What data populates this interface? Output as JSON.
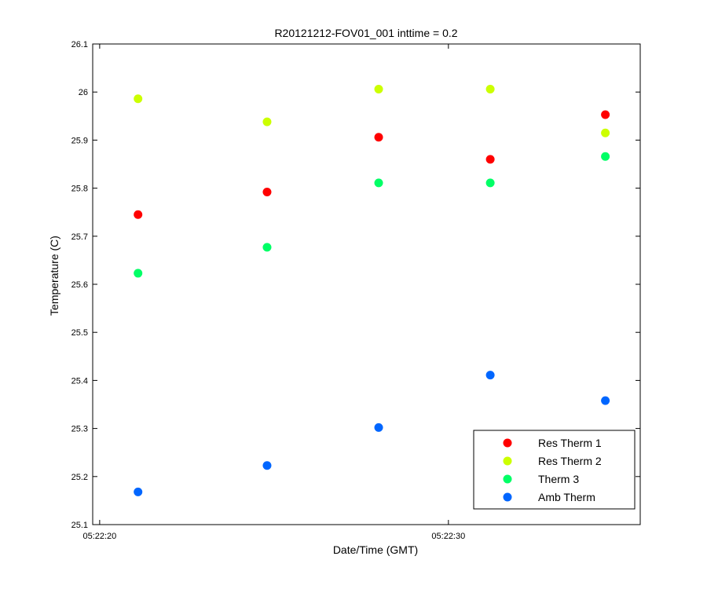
{
  "chart_data": {
    "type": "scatter",
    "title": "R20121212-FOV01_001 inttime = 0.2",
    "xlabel": "Date/Time (GMT)",
    "ylabel": "Temperature (C)",
    "xlim": [
      "05:22:19.8",
      "05:22:35.5"
    ],
    "ylim": [
      25.1,
      26.1
    ],
    "yticks": [
      25.1,
      25.2,
      25.3,
      25.4,
      25.5,
      25.6,
      25.7,
      25.8,
      25.9,
      26,
      26.1
    ],
    "yticklabels": [
      "25.1",
      "25.2",
      "25.3",
      "25.4",
      "25.5",
      "25.6",
      "25.7",
      "25.8",
      "25.9",
      "26",
      "26.1"
    ],
    "xticks": [
      "05:22:20",
      "05:22:30"
    ],
    "xticklabels": [
      "05:22:20",
      "05:22:30"
    ],
    "x": [
      "05:22:21.1",
      "05:22:24.8",
      "05:22:28.0",
      "05:22:31.2",
      "05:22:34.5"
    ],
    "series": [
      {
        "name": "Res Therm 1",
        "color": "#ff0000",
        "values": [
          25.745,
          25.792,
          25.906,
          25.86,
          25.953
        ]
      },
      {
        "name": "Res Therm 2",
        "color": "#ccff00",
        "values": [
          25.986,
          25.938,
          26.006,
          26.006,
          25.915
        ]
      },
      {
        "name": "Therm 3",
        "color": "#00ff66",
        "values": [
          25.623,
          25.677,
          25.811,
          25.811,
          25.866
        ]
      },
      {
        "name": "Amb Therm",
        "color": "#0066ff",
        "values": [
          25.168,
          25.223,
          25.302,
          25.411,
          25.358
        ]
      }
    ],
    "grid": false,
    "legend_position": "bottom-right"
  }
}
